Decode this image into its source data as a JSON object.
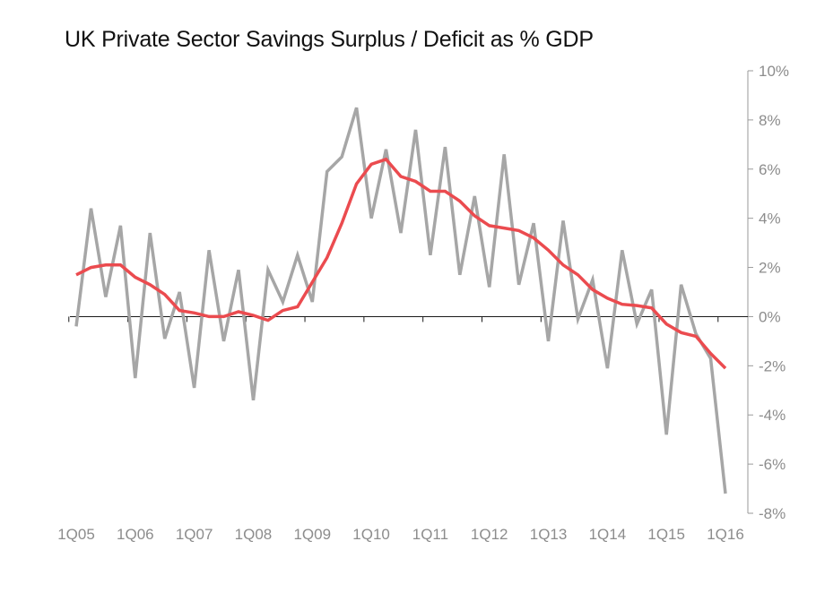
{
  "chart_data": {
    "type": "line",
    "title": "UK Private Sector Savings Surplus / Deficit as % GDP",
    "xlabel": "",
    "ylabel": "",
    "x_tick_labels": [
      "1Q05",
      "1Q06",
      "1Q07",
      "1Q08",
      "1Q09",
      "1Q10",
      "1Q11",
      "1Q12",
      "1Q13",
      "1Q14",
      "1Q15",
      "1Q16"
    ],
    "y_tick_labels": [
      "10%",
      "8%",
      "6%",
      "4%",
      "2%",
      "0%",
      "-2%",
      "-4%",
      "-6%",
      "-8%"
    ],
    "y_ticks": [
      10,
      8,
      6,
      4,
      2,
      0,
      -2,
      -4,
      -6,
      -8
    ],
    "ylim": [
      -8,
      10
    ],
    "x_range": [
      0,
      44
    ],
    "y_axis_side": "right",
    "grid": false,
    "legend": "none",
    "series": [
      {
        "color": "#a6a6a6",
        "x": [
          0,
          1,
          2,
          3,
          4,
          5,
          6,
          7,
          8,
          9,
          10,
          11,
          12,
          13,
          14,
          15,
          16,
          17,
          18,
          19,
          20,
          21,
          22,
          23,
          24,
          25,
          26,
          27,
          28,
          29,
          30,
          31,
          32,
          33,
          34,
          35,
          36,
          37,
          38,
          39,
          40,
          41,
          42,
          43,
          44
        ],
        "values": [
          -0.4,
          4.4,
          0.8,
          3.7,
          -2.5,
          3.4,
          -0.9,
          1.0,
          -2.9,
          2.7,
          -1.0,
          1.9,
          -3.4,
          1.9,
          0.6,
          2.5,
          0.6,
          5.9,
          6.5,
          8.5,
          4.0,
          6.8,
          3.4,
          7.6,
          2.5,
          6.9,
          1.7,
          4.9,
          1.2,
          6.6,
          1.3,
          3.8,
          -1.0,
          3.9,
          -0.1,
          1.5,
          -2.1,
          2.7,
          -0.3,
          1.1,
          -4.8,
          1.3,
          -0.7,
          -1.7,
          -7.2
        ]
      },
      {
        "color": "#eb4b4f",
        "x": [
          0,
          1,
          2,
          3,
          4,
          5,
          6,
          7,
          8,
          9,
          10,
          11,
          12,
          13,
          14,
          15,
          16,
          17,
          18,
          19,
          20,
          21,
          22,
          23,
          24,
          25,
          26,
          27,
          28,
          29,
          30,
          31,
          32,
          33,
          34,
          35,
          36,
          37,
          38,
          39,
          40,
          41,
          42,
          43,
          44
        ],
        "values": [
          1.7,
          2.0,
          2.1,
          2.1,
          1.6,
          1.3,
          0.9,
          0.25,
          0.15,
          0.0,
          0.0,
          0.2,
          0.05,
          -0.15,
          0.25,
          0.4,
          1.4,
          2.4,
          3.8,
          5.4,
          6.2,
          6.4,
          5.7,
          5.5,
          5.1,
          5.1,
          4.7,
          4.1,
          3.7,
          3.6,
          3.5,
          3.2,
          2.7,
          2.1,
          1.7,
          1.1,
          0.75,
          0.5,
          0.45,
          0.35,
          -0.3,
          -0.65,
          -0.8,
          -1.5,
          -2.1
        ]
      }
    ]
  }
}
